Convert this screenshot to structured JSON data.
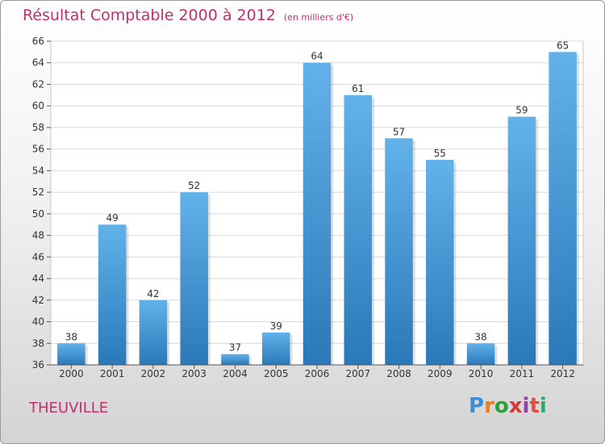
{
  "title": "Résultat Comptable 2000 à 2012",
  "subtitle": "(en milliers d'€)",
  "location": "THEUVILLE",
  "logo_text": "Proxiti",
  "colors": {
    "title": "#c0306a",
    "bar_light": "#62b2ea",
    "bar_dark": "#2b78b8",
    "logo": [
      "#3d8ed6",
      "#e67e22",
      "#2e9e3e",
      "#d63a3a",
      "#8e44ad",
      "#e74c3c",
      "#27ae60"
    ]
  },
  "chart_data": {
    "type": "bar",
    "title": "Résultat Comptable 2000 à 2012",
    "xlabel": "",
    "ylabel": "",
    "categories": [
      "2000",
      "2001",
      "2002",
      "2003",
      "2004",
      "2005",
      "2006",
      "2007",
      "2008",
      "2009",
      "2010",
      "2011",
      "2012"
    ],
    "values": [
      38,
      49,
      42,
      52,
      37,
      39,
      64,
      61,
      57,
      55,
      38,
      59,
      65
    ],
    "ylim": [
      36,
      66
    ],
    "yticks": [
      36,
      38,
      40,
      42,
      44,
      46,
      48,
      50,
      52,
      54,
      56,
      58,
      60,
      62,
      64,
      66
    ],
    "grid": true
  }
}
